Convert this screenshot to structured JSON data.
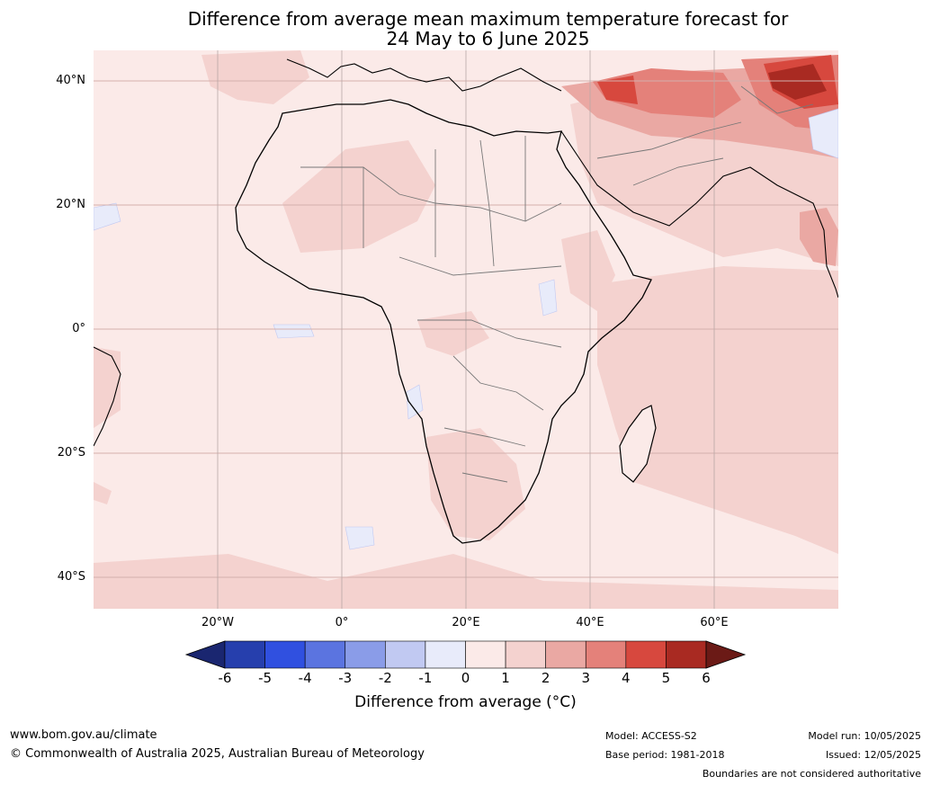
{
  "title": {
    "line1": "Difference from average mean maximum temperature forecast for",
    "line2": "24 May to 6 June 2025"
  },
  "axes": {
    "lat_labels": [
      "40°N",
      "20°N",
      "0°",
      "20°S",
      "40°S"
    ],
    "lon_labels": [
      "20°W",
      "0°",
      "20°E",
      "40°E",
      "60°E"
    ]
  },
  "colorbar": {
    "ticks": [
      "-6",
      "-5",
      "-4",
      "-3",
      "-2",
      "-1",
      "0",
      "1",
      "2",
      "3",
      "4",
      "5",
      "6"
    ],
    "colors": [
      "#1a2670",
      "#263fad",
      "#3050e0",
      "#5b74e0",
      "#8a9ce8",
      "#c1c9f2",
      "#e8ebfa",
      "#fbeae8",
      "#f4d2cf",
      "#eaa8a3",
      "#e4817a",
      "#d7483e",
      "#a92a22",
      "#6b1a16"
    ],
    "label": "Difference from average (°C)"
  },
  "footer": {
    "url": "www.bom.gov.au/climate",
    "copyright": "© Commonwealth of Australia 2025, Australian Bureau of Meteorology",
    "model": "Model: ACCESS-S2",
    "base_period": "Base period: 1981-2018",
    "model_run": "Model run: 10/05/2025",
    "issued": "Issued: 12/05/2025",
    "disclaimer": "Boundaries are not considered authoritative"
  }
}
